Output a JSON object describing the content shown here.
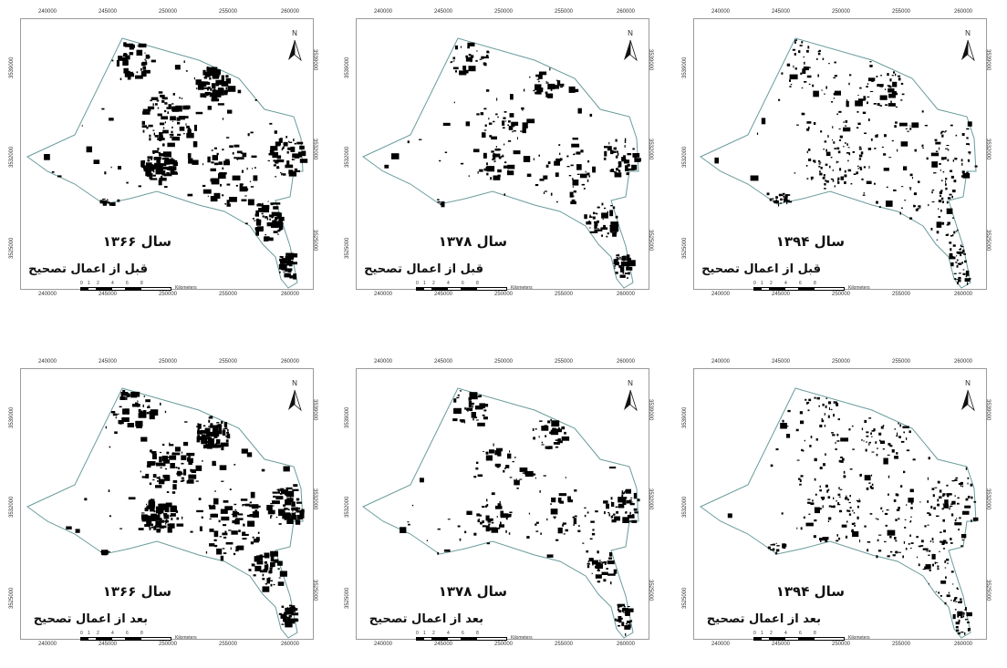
{
  "x_ticks": [
    "240000",
    "245000",
    "250000",
    "255000",
    "260000"
  ],
  "y_ticks": [
    "3539000",
    "3532000",
    "3525000"
  ],
  "north_label": "N",
  "scale": {
    "numbers": [
      "0",
      "1",
      "2",
      "4",
      "6",
      "8"
    ],
    "unit": "Kilometers"
  },
  "colors": {
    "boundary": "#6a9b9b",
    "urban": "#000000",
    "frame": "#9a9a9a"
  },
  "panels": [
    {
      "year_label": "سال ۱۳۶۶",
      "desc_label": "قبل از اعمال تصحیح",
      "density": "high"
    },
    {
      "year_label": "سال ۱۳۷۸",
      "desc_label": "قبل از اعمال تصحیح",
      "density": "medium"
    },
    {
      "year_label": "سال ۱۳۹۴",
      "desc_label": "قبل از اعمال تصحیح",
      "density": "sparse"
    },
    {
      "year_label": "سال ۱۳۶۶",
      "desc_label": "بعد از اعمال تصحیح",
      "density": "high"
    },
    {
      "year_label": "سال ۱۳۷۸",
      "desc_label": "بعد از اعمال تصحیح",
      "density": "medium"
    },
    {
      "year_label": "سال ۱۳۹۴",
      "desc_label": "بعد از اعمال تصحیح",
      "density": "sparse"
    }
  ]
}
